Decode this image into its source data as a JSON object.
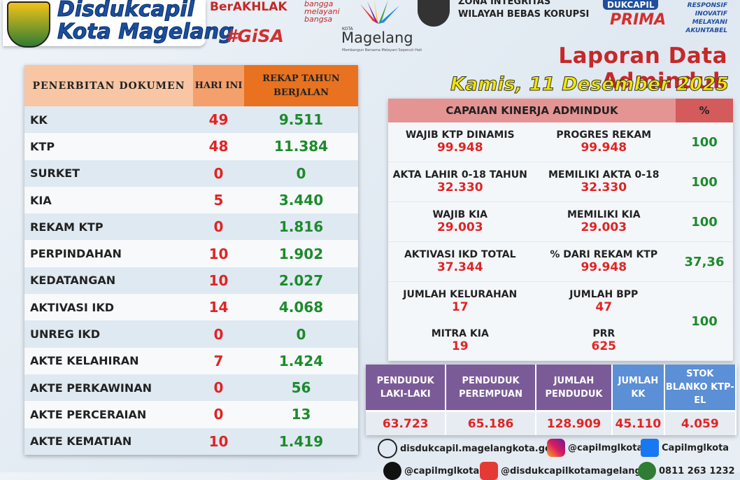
{
  "header": {
    "logo_line1": "Disdukcapil",
    "logo_line2": "Kota Magelang",
    "berakhlak": "BerAKHLAK",
    "bangga": "bangga melayani bangsa",
    "gisa": "#GiSA",
    "kota": "KOTA",
    "magelang": "Magelang",
    "magelang_slogan": "Membangun Bersama Melayani Sepenuh Hati",
    "zona_line1": "ZONA INTEGRITAS",
    "zona_line2": "WILAYAH BEBAS KORUPSI",
    "dukcapil": "DUKCAPIL",
    "prima": "PRIMA",
    "motto": "RESPONSIF INOVATIF MELAYANI AKUNTABEL",
    "title": "Laporan Data Adminduk",
    "date": "Kamis, 11 Desember 2025"
  },
  "documents": {
    "headers": [
      "PENERBITAN DOKUMEN",
      "HARI INI",
      "REKAP TAHUN BERJALAN"
    ],
    "rows": [
      [
        "KK",
        "49",
        "9.511"
      ],
      [
        "KTP",
        "48",
        "11.384"
      ],
      [
        "SURKET",
        "0",
        "0"
      ],
      [
        "KIA",
        "5",
        "3.440"
      ],
      [
        "REKAM KTP",
        "0",
        "1.816"
      ],
      [
        "PERPINDAHAN",
        "10",
        "1.902"
      ],
      [
        "KEDATANGAN",
        "10",
        "2.027"
      ],
      [
        "AKTIVASI IKD",
        "14",
        "4.068"
      ],
      [
        "UNREG IKD",
        "0",
        "0"
      ],
      [
        "AKTE KELAHIRAN",
        "7",
        "1.424"
      ],
      [
        "AKTE PERKAWINAN",
        "0",
        "56"
      ],
      [
        "AKTE PERCERAIAN",
        "0",
        "13"
      ],
      [
        "AKTE KEMATIAN",
        "10",
        "1.419"
      ]
    ]
  },
  "kinerja": {
    "title": "CAPAIAN KINERJA ADMINDUK",
    "percent_header": "%",
    "groups": [
      {
        "rows": [
          [
            [
              "WAJIB KTP DINAMIS",
              "99.948"
            ],
            [
              "PROGRES REKAM",
              "99.948"
            ]
          ]
        ],
        "percent": "100"
      },
      {
        "rows": [
          [
            [
              "AKTA LAHIR 0-18 TAHUN",
              "32.330"
            ],
            [
              "MEMILIKI AKTA 0-18",
              "32.330"
            ]
          ]
        ],
        "percent": "100"
      },
      {
        "rows": [
          [
            [
              "WAJIB KIA",
              "29.003"
            ],
            [
              "MEMILIKI KIA",
              "29.003"
            ]
          ]
        ],
        "percent": "100"
      },
      {
        "rows": [
          [
            [
              "AKTIVASI IKD TOTAL",
              "37.344"
            ],
            [
              "% DARI REKAM KTP",
              "99.948"
            ]
          ]
        ],
        "percent": "37,36"
      },
      {
        "rows": [
          [
            [
              "JUMLAH KELURAHAN",
              "17"
            ],
            [
              "JUMLAH BPP",
              "47"
            ]
          ],
          [
            [
              "MITRA KIA",
              "19"
            ],
            [
              "PRR",
              "625"
            ]
          ]
        ],
        "percent": "100"
      }
    ]
  },
  "population": {
    "headers": [
      "PENDUDUK LAKI-LAKI",
      "PENDUDUK PEREMPUAN",
      "JUMLAH PENDUDUK",
      "JUMLAH KK",
      "STOK BLANKO KTP-EL"
    ],
    "values": [
      "63.723",
      "65.186",
      "128.909",
      "45.110",
      "4.059"
    ]
  },
  "footer": {
    "website": "disdukcapil.magelangkota.go.id",
    "instagram": "@capilmglkota",
    "facebook": "Capilmglkota",
    "x": "@capilmglkota",
    "youtube": "@disdukcapilkotamagelang",
    "whatsapp": "0811 263 1232"
  }
}
